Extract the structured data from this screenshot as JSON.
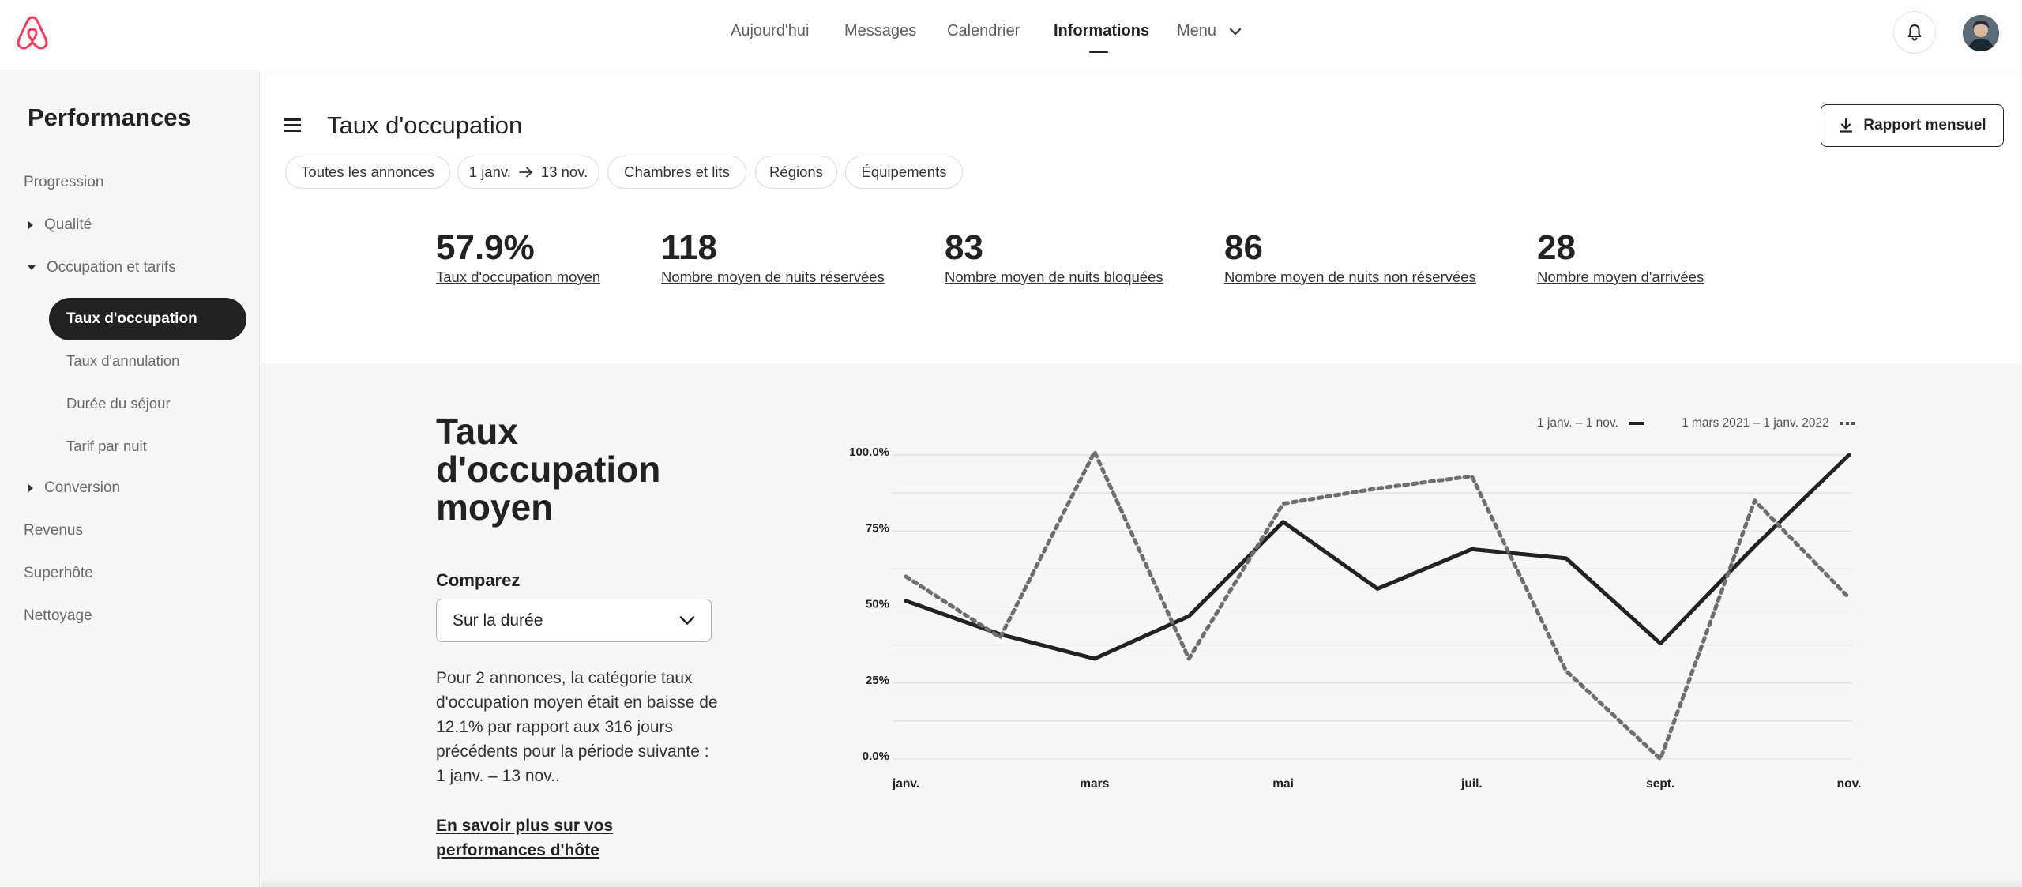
{
  "nav": {
    "items": [
      {
        "label": "Aujourd'hui"
      },
      {
        "label": "Messages"
      },
      {
        "label": "Calendrier"
      },
      {
        "label": "Informations"
      },
      {
        "label": "Menu"
      }
    ]
  },
  "sidebar": {
    "title": "Performances",
    "items": {
      "progression": "Progression",
      "qualite": "Qualité",
      "occupation": "Occupation et tarifs",
      "taux_occupation": "Taux d'occupation",
      "taux_annulation": "Taux d'annulation",
      "duree": "Durée du séjour",
      "tarif": "Tarif par nuit",
      "conversion": "Conversion",
      "revenus": "Revenus",
      "superhote": "Superhôte",
      "nettoyage": "Nettoyage"
    }
  },
  "header": {
    "title": "Taux d'occupation",
    "report_button": "Rapport mensuel"
  },
  "filters": {
    "all_listings": "Toutes les annonces",
    "date_from": "1 janv.",
    "date_to": "13 nov.",
    "rooms": "Chambres et lits",
    "regions": "Régions",
    "amenities": "Équipements"
  },
  "stats": [
    {
      "value": "57.9%",
      "label": "Taux d'occupation moyen"
    },
    {
      "value": "118",
      "label": "Nombre moyen de nuits réservées"
    },
    {
      "value": "83",
      "label": "Nombre moyen de nuits bloquées"
    },
    {
      "value": "86",
      "label": "Nombre moyen de nuits non réservées"
    },
    {
      "value": "28",
      "label": "Nombre moyen d'arrivées"
    }
  ],
  "detail": {
    "title": "Taux d'occupation moyen",
    "compare_label": "Comparez",
    "compare_value": "Sur la durée",
    "description": "Pour 2 annonces, la catégorie taux d'occupation moyen était en baisse de 12.1% par rapport aux 316 jours précédents pour la période suivante : 1 janv. – 13 nov..",
    "learn_more": "En savoir plus sur vos performances d'hôte"
  },
  "chart_data": {
    "type": "line",
    "y_ticks": [
      "100.0%",
      "75%",
      "50%",
      "25%",
      "0.0%"
    ],
    "x_labels": [
      "janv.",
      "mars",
      "mai",
      "juil.",
      "sept.",
      "nov."
    ],
    "ylim": [
      0,
      100
    ],
    "legend_placement": "top-right",
    "series": [
      {
        "name": "1 janv. – 1 nov.",
        "style": "solid",
        "color": "#222222",
        "values": [
          52,
          41,
          33,
          47,
          78,
          56,
          69,
          66,
          38,
          70,
          100
        ]
      },
      {
        "name": "1 mars 2021 – 1 janv. 2022",
        "style": "dotted",
        "color": "#6e6e6e",
        "values": [
          60,
          40,
          101,
          33,
          84,
          89,
          93,
          29,
          0,
          85,
          53
        ]
      }
    ]
  }
}
